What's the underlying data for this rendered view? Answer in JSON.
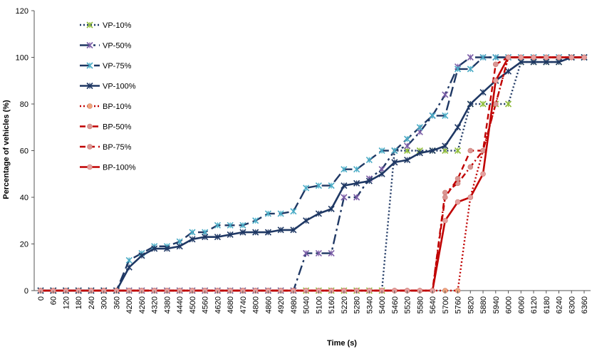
{
  "chart_data": {
    "type": "line",
    "title": "",
    "xlabel": "Time (s)",
    "ylabel": "Percentage of vehicles (%)",
    "ylim": [
      0,
      120
    ],
    "yticks": [
      0,
      20,
      40,
      60,
      80,
      100,
      120
    ],
    "categories": [
      "0",
      "60",
      "120",
      "180",
      "240",
      "300",
      "360",
      "4200",
      "4260",
      "4320",
      "4380",
      "4440",
      "4500",
      "4560",
      "4620",
      "4680",
      "4740",
      "4800",
      "4860",
      "4920",
      "4980",
      "5040",
      "5100",
      "5160",
      "5220",
      "5280",
      "5340",
      "5400",
      "5460",
      "5520",
      "5580",
      "5640",
      "5700",
      "5760",
      "5820",
      "5880",
      "5940",
      "6000",
      "6060",
      "6120",
      "6180",
      "6240",
      "6300",
      "6360"
    ],
    "legend_position": "top-left",
    "series": [
      {
        "name": "VP-10%",
        "color": "#1f3864",
        "dash": "dotted",
        "marker": "x-green",
        "values": [
          0,
          0,
          0,
          0,
          0,
          0,
          0,
          0,
          0,
          0,
          0,
          0,
          0,
          0,
          0,
          0,
          0,
          0,
          0,
          0,
          0,
          0,
          0,
          0,
          0,
          0,
          0,
          0,
          60,
          60,
          60,
          60,
          60,
          60,
          80,
          80,
          80,
          80,
          98,
          98,
          98,
          98,
          100,
          100
        ]
      },
      {
        "name": "VP-50%",
        "color": "#1f3864",
        "dash": "longdash-dot",
        "marker": "x-purple",
        "values": [
          0,
          0,
          0,
          0,
          0,
          0,
          0,
          0,
          0,
          0,
          0,
          0,
          0,
          0,
          0,
          0,
          0,
          0,
          0,
          0,
          0,
          16,
          16,
          16,
          40,
          40,
          48,
          52,
          60,
          62,
          68,
          75,
          84,
          96,
          100,
          100,
          100,
          100,
          100,
          100,
          100,
          100,
          100,
          100
        ]
      },
      {
        "name": "VP-75%",
        "color": "#1f3864",
        "dash": "longdash",
        "marker": "x-teal",
        "values": [
          0,
          0,
          0,
          0,
          0,
          0,
          0,
          13,
          16,
          19,
          19,
          21,
          25,
          25,
          28,
          28,
          28,
          30,
          33,
          33,
          34,
          44,
          45,
          45,
          52,
          52,
          56,
          60,
          60,
          65,
          70,
          75,
          75,
          95,
          95,
          100,
          100,
          100,
          100,
          100,
          100,
          100,
          100,
          100
        ]
      },
      {
        "name": "VP-100%",
        "color": "#1f3864",
        "dash": "solid",
        "marker": "x-navy",
        "values": [
          0,
          0,
          0,
          0,
          0,
          0,
          0,
          10,
          15,
          18,
          18,
          19,
          22,
          23,
          23,
          24,
          25,
          25,
          25,
          26,
          26,
          30,
          33,
          35,
          45,
          46,
          47,
          50,
          55,
          56,
          59,
          60,
          62,
          70,
          80,
          85,
          90,
          94,
          98,
          98,
          98,
          98,
          100,
          100
        ]
      },
      {
        "name": "BP-10%",
        "color": "#c00000",
        "dash": "dotted",
        "marker": "dot-orange",
        "values": [
          0,
          0,
          0,
          0,
          0,
          0,
          0,
          0,
          0,
          0,
          0,
          0,
          0,
          0,
          0,
          0,
          0,
          0,
          0,
          0,
          0,
          0,
          0,
          0,
          0,
          0,
          0,
          0,
          0,
          0,
          0,
          0,
          0,
          0,
          40,
          60,
          80,
          100,
          100,
          100,
          100,
          100,
          100,
          100
        ]
      },
      {
        "name": "BP-50%",
        "color": "#c00000",
        "dash": "dashdot",
        "marker": "dot-pink",
        "values": [
          0,
          0,
          0,
          0,
          0,
          0,
          0,
          0,
          0,
          0,
          0,
          0,
          0,
          0,
          0,
          0,
          0,
          0,
          0,
          0,
          0,
          0,
          0,
          0,
          0,
          0,
          0,
          0,
          0,
          0,
          0,
          0,
          42,
          46,
          53,
          60,
          80,
          100,
          100,
          100,
          100,
          100,
          100,
          100
        ]
      },
      {
        "name": "BP-75%",
        "color": "#c00000",
        "dash": "dashed",
        "marker": "dot-pink",
        "values": [
          0,
          0,
          0,
          0,
          0,
          0,
          0,
          0,
          0,
          0,
          0,
          0,
          0,
          0,
          0,
          0,
          0,
          0,
          0,
          0,
          0,
          0,
          0,
          0,
          0,
          0,
          0,
          0,
          0,
          0,
          0,
          0,
          40,
          48,
          60,
          60,
          97,
          100,
          100,
          100,
          100,
          100,
          100,
          100
        ]
      },
      {
        "name": "BP-100%",
        "color": "#c00000",
        "dash": "solid",
        "marker": "dot-salmon",
        "values": [
          0,
          0,
          0,
          0,
          0,
          0,
          0,
          0,
          0,
          0,
          0,
          0,
          0,
          0,
          0,
          0,
          0,
          0,
          0,
          0,
          0,
          0,
          0,
          0,
          0,
          0,
          0,
          0,
          0,
          0,
          0,
          0,
          30,
          38,
          40,
          50,
          90,
          100,
          100,
          100,
          100,
          100,
          100,
          100
        ]
      }
    ]
  }
}
